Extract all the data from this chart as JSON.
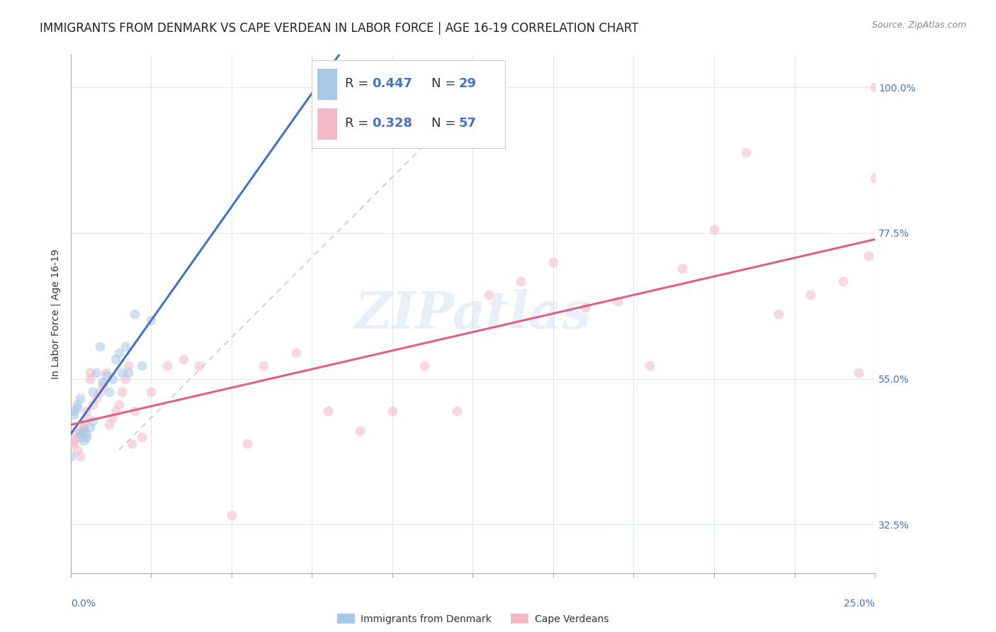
{
  "title": "IMMIGRANTS FROM DENMARK VS CAPE VERDEAN IN LABOR FORCE | AGE 16-19 CORRELATION CHART",
  "source": "Source: ZipAtlas.com",
  "ylabel_label": "In Labor Force | Age 16-19",
  "color_denmark": "#a8c8e8",
  "color_capeverde": "#f4b8c8",
  "color_trend_denmark": "#4472c4",
  "color_trend_capeverde": "#e06080",
  "color_diag": "#c8c8d8",
  "color_r_val": "#4472c4",
  "color_n_val": "#4472c4",
  "color_tick": "#4472c4",
  "color_title": "#222222",
  "color_source": "#888888",
  "color_ylabel": "#333333",
  "color_grid": "#e0e8f0",
  "color_legend_border": "#cccccc",
  "denmark_x": [
    0.0,
    0.001,
    0.001,
    0.002,
    0.002,
    0.003,
    0.003,
    0.003,
    0.004,
    0.004,
    0.005,
    0.005,
    0.006,
    0.007,
    0.007,
    0.008,
    0.009,
    0.01,
    0.011,
    0.012,
    0.013,
    0.014,
    0.015,
    0.016,
    0.017,
    0.018,
    0.02,
    0.022,
    0.025
  ],
  "denmark_y": [
    0.43,
    0.5,
    0.495,
    0.51,
    0.505,
    0.46,
    0.465,
    0.52,
    0.455,
    0.47,
    0.46,
    0.465,
    0.475,
    0.53,
    0.485,
    0.56,
    0.6,
    0.545,
    0.555,
    0.53,
    0.55,
    0.58,
    0.59,
    0.56,
    0.6,
    0.56,
    0.65,
    0.57,
    0.64
  ],
  "capeverde_x": [
    0.0,
    0.001,
    0.001,
    0.002,
    0.002,
    0.003,
    0.003,
    0.004,
    0.004,
    0.005,
    0.005,
    0.006,
    0.006,
    0.007,
    0.008,
    0.009,
    0.01,
    0.011,
    0.012,
    0.013,
    0.014,
    0.015,
    0.016,
    0.017,
    0.018,
    0.019,
    0.02,
    0.022,
    0.025,
    0.03,
    0.035,
    0.04,
    0.05,
    0.055,
    0.06,
    0.07,
    0.08,
    0.09,
    0.1,
    0.11,
    0.12,
    0.13,
    0.14,
    0.15,
    0.16,
    0.17,
    0.18,
    0.19,
    0.2,
    0.21,
    0.22,
    0.23,
    0.24,
    0.245,
    0.248,
    0.25,
    0.25
  ],
  "capeverde_y": [
    0.46,
    0.455,
    0.45,
    0.44,
    0.465,
    0.47,
    0.43,
    0.475,
    0.48,
    0.49,
    0.5,
    0.55,
    0.56,
    0.51,
    0.52,
    0.53,
    0.54,
    0.56,
    0.48,
    0.49,
    0.5,
    0.51,
    0.53,
    0.55,
    0.57,
    0.45,
    0.5,
    0.46,
    0.53,
    0.57,
    0.58,
    0.57,
    0.34,
    0.45,
    0.57,
    0.59,
    0.5,
    0.47,
    0.5,
    0.57,
    0.5,
    0.68,
    0.7,
    0.73,
    0.66,
    0.67,
    0.57,
    0.72,
    0.78,
    0.9,
    0.65,
    0.68,
    0.7,
    0.56,
    0.74,
    1.0,
    0.86
  ],
  "xlim": [
    0.0,
    0.25
  ],
  "ylim": [
    0.25,
    1.05
  ],
  "yticks": [
    0.325,
    0.55,
    0.775,
    1.0
  ],
  "ytick_labels": [
    "32.5%",
    "55.0%",
    "77.5%",
    "100.0%"
  ],
  "xtick_vals": [
    0.0,
    0.025,
    0.05,
    0.075,
    0.1,
    0.125,
    0.15,
    0.175,
    0.2,
    0.225,
    0.25
  ],
  "marker_size": 100,
  "marker_alpha": 0.55,
  "title_fontsize": 12,
  "tick_fontsize": 10,
  "label_fontsize": 10,
  "legend_fontsize": 13,
  "watermark_text": "ZIPatlas",
  "legend_line1_r": "0.447",
  "legend_line1_n": "29",
  "legend_line2_r": "0.328",
  "legend_line2_n": "57"
}
